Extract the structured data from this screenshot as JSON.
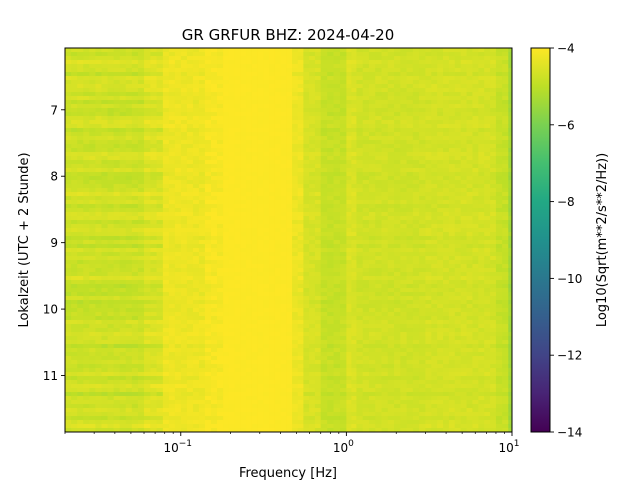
{
  "chart_data": {
    "type": "heatmap",
    "title": "GR GRFUR  BHZ: 2024-04-20",
    "xlabel": "Frequency [Hz]",
    "ylabel": "Lokalzeit (UTC + 2 Stunde)",
    "colorbar_label": "Log10(Sqrt(m**2/s**2/Hz))",
    "x_scale": "log",
    "x_range": [
      0.02,
      10
    ],
    "y_range": [
      6.07,
      11.85
    ],
    "y_inverted": true,
    "color_range": [
      -14,
      -4
    ],
    "colormap": "viridis",
    "x_ticks": [
      {
        "value": 0.1,
        "base": "10",
        "exp": "−1"
      },
      {
        "value": 1,
        "base": "10",
        "exp": "0"
      },
      {
        "value": 10,
        "base": "10",
        "exp": "1"
      }
    ],
    "y_ticks": [
      7,
      8,
      9,
      10,
      11
    ],
    "y_tick_labels": [
      "7",
      "8",
      "9",
      "10",
      "11"
    ],
    "colorbar_ticks": [
      -4,
      -6,
      -8,
      -10,
      -12,
      -14
    ],
    "colorbar_tick_labels": [
      "−4",
      "−6",
      "−8",
      "−10",
      "−12",
      "−14"
    ],
    "frequency_profile": [
      {
        "f_from": 0.02,
        "f_to": 0.06,
        "level": -4.75
      },
      {
        "f_from": 0.06,
        "f_to": 0.078,
        "level": -4.55
      },
      {
        "f_from": 0.078,
        "f_to": 0.14,
        "level": -4.25
      },
      {
        "f_from": 0.14,
        "f_to": 0.18,
        "level": -4.12
      },
      {
        "f_from": 0.18,
        "f_to": 0.47,
        "level": -4.0
      },
      {
        "f_from": 0.47,
        "f_to": 0.55,
        "level": -4.25
      },
      {
        "f_from": 0.55,
        "f_to": 0.7,
        "level": -4.6
      },
      {
        "f_from": 0.7,
        "f_to": 1.0,
        "level": -4.85
      },
      {
        "f_from": 1.0,
        "f_to": 1.15,
        "level": -4.55
      },
      {
        "f_from": 1.15,
        "f_to": 3.0,
        "level": -4.7
      },
      {
        "f_from": 3.0,
        "f_to": 8.0,
        "level": -4.65
      },
      {
        "f_from": 8.0,
        "f_to": 9.5,
        "level": -4.85
      },
      {
        "f_from": 9.5,
        "f_to": 10,
        "level": -5.4
      }
    ]
  }
}
